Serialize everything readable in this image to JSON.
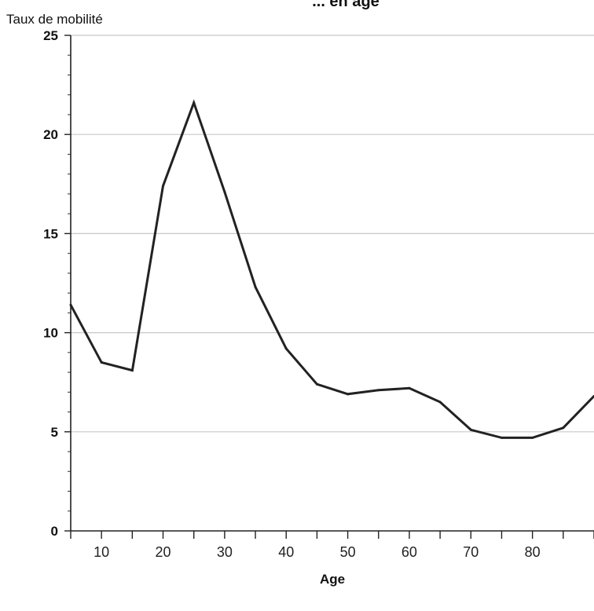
{
  "chart_data": {
    "type": "line",
    "title": "... en âge",
    "ylabel": "Taux de mobilité",
    "xlabel": "Age",
    "xlim": [
      5,
      90
    ],
    "ylim": [
      0,
      25
    ],
    "yticks": [
      0,
      5,
      10,
      15,
      20,
      25
    ],
    "xticks": [
      10,
      20,
      30,
      40,
      50,
      60,
      70,
      80
    ],
    "grid": "horizontal",
    "line_color": "#222222",
    "grid_color": "#c8c8c8",
    "series": [
      {
        "x": [
          5,
          10,
          15,
          20,
          25,
          30,
          35,
          40,
          45,
          50,
          55,
          60,
          65,
          70,
          75,
          80,
          85,
          90
        ],
        "values": [
          11.4,
          8.5,
          8.1,
          17.4,
          21.6,
          17.1,
          12.3,
          9.2,
          7.4,
          6.9,
          7.1,
          7.2,
          6.5,
          5.1,
          4.7,
          4.7,
          5.2,
          6.8
        ]
      }
    ]
  }
}
